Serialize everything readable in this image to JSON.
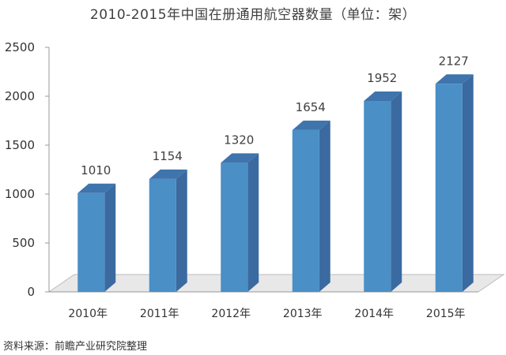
{
  "chart_data": {
    "type": "bar",
    "title": "2010-2015年中国在册通用航空器数量（单位：架）",
    "categories": [
      "2010年",
      "2011年",
      "2012年",
      "2013年",
      "2014年",
      "2015年"
    ],
    "values": [
      1010,
      1154,
      1320,
      1654,
      1952,
      2127
    ],
    "yticks": [
      "0",
      "500",
      "1000",
      "1500",
      "2000",
      "2500"
    ],
    "ylim": [
      0,
      2500
    ],
    "xlabel": "",
    "ylabel": "",
    "grid": false,
    "legend": "none",
    "bar_style": "3d",
    "colors": {
      "bar_front": "#4a8fc6",
      "bar_side": "#3a6aa0",
      "bar_top": "#3f74ad",
      "floor": "#e8e8e8"
    }
  },
  "source": "资料来源：前瞻产业研究院整理"
}
